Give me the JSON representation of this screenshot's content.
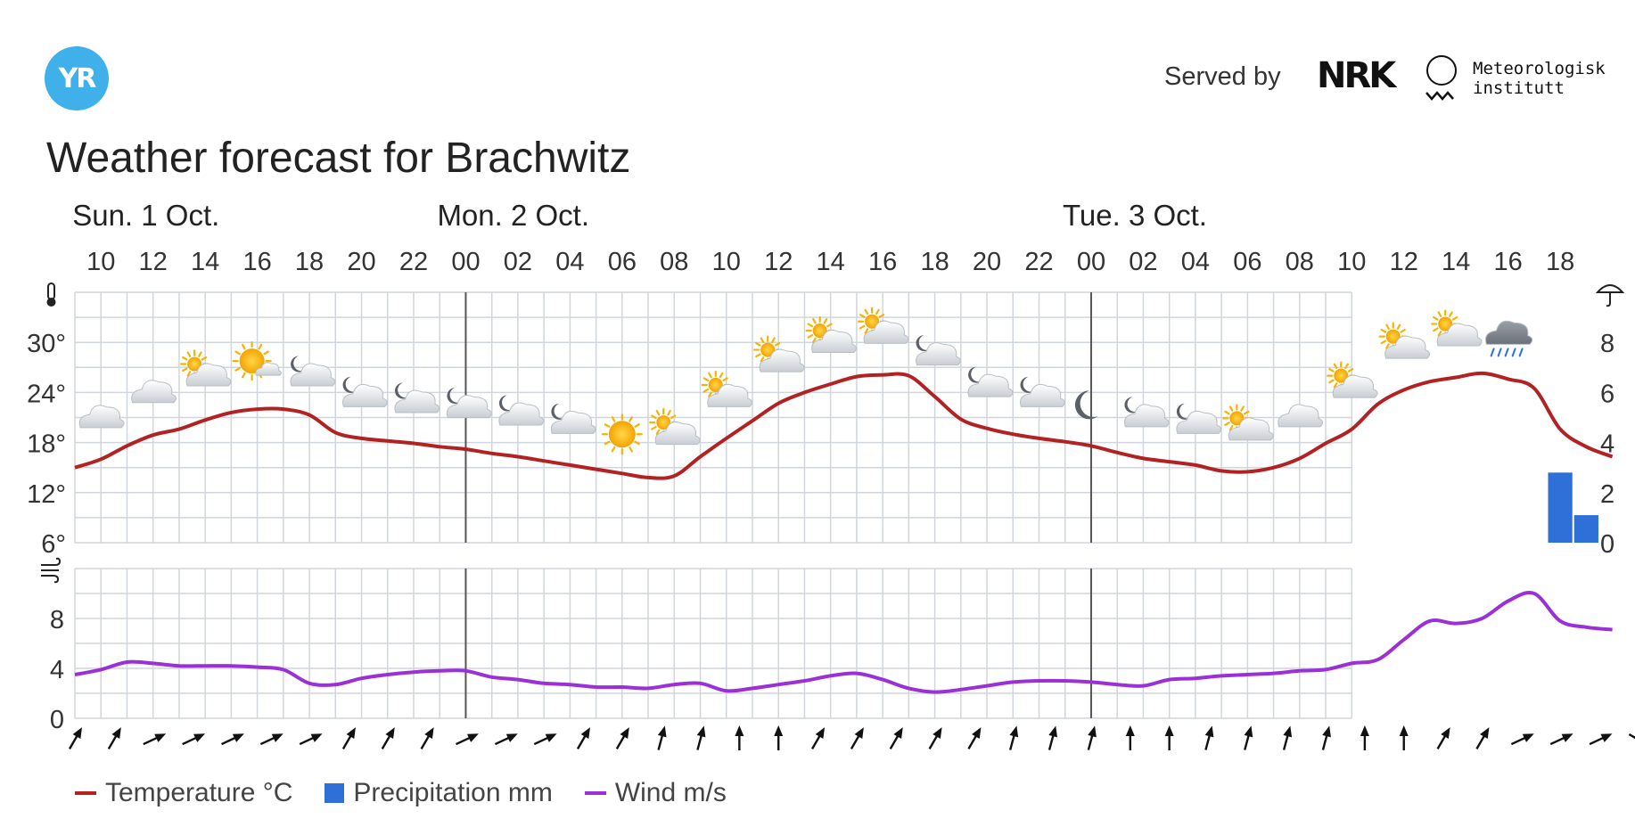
{
  "header": {
    "logo_text": "YR",
    "served_by": "Served by",
    "nrk_logo": "NRK",
    "met_line1": "Meteorologisk",
    "met_line2": "institutt"
  },
  "title": "Weather forecast for Brachwitz",
  "colors": {
    "temperature": "#b22222",
    "precipitation": "#2e6fd8",
    "wind": "#9b30d9",
    "grid": "#d0d6dc",
    "day_divider": "#555555"
  },
  "legend": [
    {
      "label": "Temperature °C",
      "kind": "line",
      "color": "#b22222"
    },
    {
      "label": "Precipitation mm",
      "kind": "box",
      "color": "#2e6fd8"
    },
    {
      "label": "Wind m/s",
      "kind": "line",
      "color": "#9b30d9"
    }
  ],
  "chart_data": {
    "type": "line",
    "x_start": "Sun 1 Oct 09:00",
    "x_step_hours": 1,
    "days": [
      {
        "label": "Sun. 1 Oct.",
        "hour": 10
      },
      {
        "label": "Mon. 2 Oct.",
        "hour": 24
      },
      {
        "label": "Tue. 3 Oct.",
        "hour": 48
      }
    ],
    "hour_ticks": [
      "10",
      "12",
      "14",
      "16",
      "18",
      "20",
      "22",
      "00",
      "02",
      "04",
      "06",
      "08",
      "10",
      "12",
      "14",
      "16",
      "18",
      "20",
      "22",
      "00",
      "02",
      "04",
      "06",
      "08",
      "10",
      "12",
      "14",
      "16",
      "18"
    ],
    "day_dividers": [
      24,
      48
    ],
    "temperature": {
      "name": "Temperature °C",
      "axis_ticks": [
        "6°",
        "12°",
        "18°",
        "24°",
        "30°"
      ],
      "ylim": [
        6,
        36
      ],
      "hours": [
        9,
        10,
        11,
        12,
        13,
        14,
        15,
        16,
        17,
        18,
        19,
        20,
        21,
        22,
        23,
        24,
        25,
        26,
        27,
        28,
        29,
        30,
        31,
        32,
        33,
        34,
        35,
        36,
        37,
        38,
        39,
        40,
        41,
        42,
        43,
        44,
        45,
        46,
        47,
        48,
        49,
        50,
        51,
        52,
        53,
        54,
        55,
        56,
        57,
        58,
        59,
        60,
        61,
        62,
        63,
        64,
        65,
        66,
        67,
        68
      ],
      "values": [
        15,
        16,
        17.6,
        18.9,
        19.6,
        20.7,
        21.6,
        22,
        22,
        21.3,
        19.2,
        18.5,
        18.2,
        17.9,
        17.5,
        17.2,
        16.7,
        16.3,
        15.8,
        15.3,
        14.8,
        14.3,
        13.8,
        14,
        16.3,
        18.5,
        20.6,
        22.7,
        24,
        25,
        25.9,
        26.1,
        26,
        23.5,
        20.8,
        19.7,
        19,
        18.5,
        18.1,
        17.6,
        16.8,
        16.1,
        15.7,
        15.3,
        14.6,
        14.5,
        15,
        16.1,
        17.9,
        19.6,
        22.6,
        24.3,
        25.3,
        25.8,
        26.3,
        25.6,
        24.5,
        19.6,
        17.5,
        16.3
      ]
    },
    "precipitation": {
      "name": "Precipitation mm",
      "axis_ticks": [
        "0",
        "2",
        "4",
        "6",
        "8"
      ],
      "ylim": [
        0,
        10
      ],
      "bars": [
        {
          "hour": 66,
          "value": 2.8
        },
        {
          "hour": 67,
          "value": 1.1
        }
      ]
    },
    "wind": {
      "name": "Wind m/s",
      "axis_ticks": [
        "0",
        "4",
        "8"
      ],
      "ylim": [
        0,
        12
      ],
      "hours": [
        9,
        10,
        11,
        12,
        13,
        14,
        15,
        16,
        17,
        18,
        19,
        20,
        21,
        22,
        23,
        24,
        25,
        26,
        27,
        28,
        29,
        30,
        31,
        32,
        33,
        34,
        35,
        36,
        37,
        38,
        39,
        40,
        41,
        42,
        43,
        44,
        45,
        46,
        47,
        48,
        49,
        50,
        51,
        52,
        53,
        54,
        55,
        56,
        57,
        58,
        59,
        60,
        61,
        62,
        63,
        64,
        65,
        66,
        67,
        68
      ],
      "values": [
        3.5,
        3.9,
        4.5,
        4.4,
        4.2,
        4.2,
        4.2,
        4.1,
        3.9,
        2.8,
        2.7,
        3.2,
        3.5,
        3.7,
        3.8,
        3.8,
        3.3,
        3.1,
        2.8,
        2.7,
        2.5,
        2.5,
        2.4,
        2.7,
        2.8,
        2.2,
        2.4,
        2.7,
        3,
        3.4,
        3.6,
        3.1,
        2.4,
        2.1,
        2.3,
        2.6,
        2.9,
        3,
        3,
        2.9,
        2.7,
        2.6,
        3.1,
        3.2,
        3.4,
        3.5,
        3.6,
        3.8,
        3.9,
        4.4,
        4.7,
        6.3,
        7.8,
        7.6,
        8,
        9.4,
        10,
        7.8,
        7.3,
        7.1
      ],
      "direction_deg": [
        30,
        30,
        65,
        65,
        65,
        65,
        65,
        30,
        30,
        30,
        65,
        65,
        65,
        30,
        30,
        15,
        15,
        0,
        0,
        30,
        30,
        30,
        30,
        30,
        15,
        15,
        15,
        0,
        0,
        15,
        15,
        15,
        15,
        0,
        0,
        30,
        30,
        65,
        65,
        65,
        120
      ]
    },
    "weather_symbols": [
      {
        "hour": 10,
        "icon": "cloud-icon",
        "temp_anchor": 16
      },
      {
        "hour": 12,
        "icon": "cloud-icon",
        "temp_anchor": 19
      },
      {
        "hour": 14,
        "icon": "partly-sunny-icon",
        "temp_anchor": 21
      },
      {
        "hour": 16,
        "icon": "sun-cloud-icon",
        "temp_anchor": 22
      },
      {
        "hour": 18,
        "icon": "partly-cloudy-night-icon",
        "temp_anchor": 21
      },
      {
        "hour": 20,
        "icon": "partly-cloudy-night-icon",
        "temp_anchor": 18.5
      },
      {
        "hour": 22,
        "icon": "partly-cloudy-night-icon",
        "temp_anchor": 17.8
      },
      {
        "hour": 24,
        "icon": "partly-cloudy-night-icon",
        "temp_anchor": 17.2
      },
      {
        "hour": 26,
        "icon": "partly-cloudy-night-icon",
        "temp_anchor": 16.3
      },
      {
        "hour": 28,
        "icon": "partly-cloudy-night-icon",
        "temp_anchor": 15.3
      },
      {
        "hour": 30,
        "icon": "sun-icon",
        "temp_anchor": 14.3
      },
      {
        "hour": 32,
        "icon": "partly-sunny-icon",
        "temp_anchor": 14
      },
      {
        "hour": 34,
        "icon": "partly-sunny-icon",
        "temp_anchor": 18.5
      },
      {
        "hour": 36,
        "icon": "partly-sunny-icon",
        "temp_anchor": 22.7
      },
      {
        "hour": 38,
        "icon": "partly-sunny-icon",
        "temp_anchor": 25
      },
      {
        "hour": 40,
        "icon": "partly-sunny-icon",
        "temp_anchor": 26.1
      },
      {
        "hour": 42,
        "icon": "partly-cloudy-night-icon",
        "temp_anchor": 23.5
      },
      {
        "hour": 44,
        "icon": "partly-cloudy-night-icon",
        "temp_anchor": 19.7
      },
      {
        "hour": 46,
        "icon": "partly-cloudy-night-icon",
        "temp_anchor": 18.5
      },
      {
        "hour": 48,
        "icon": "moon-icon",
        "temp_anchor": 17.6
      },
      {
        "hour": 50,
        "icon": "partly-cloudy-night-icon",
        "temp_anchor": 16.1
      },
      {
        "hour": 52,
        "icon": "partly-cloudy-night-icon",
        "temp_anchor": 15.3
      },
      {
        "hour": 54,
        "icon": "partly-sunny-icon",
        "temp_anchor": 14.5
      },
      {
        "hour": 56,
        "icon": "cloud-icon",
        "temp_anchor": 16.1
      },
      {
        "hour": 58,
        "icon": "partly-sunny-icon",
        "temp_anchor": 19.6
      },
      {
        "hour": 60,
        "icon": "partly-sunny-icon",
        "temp_anchor": 24.3
      },
      {
        "hour": 62,
        "icon": "partly-sunny-icon",
        "temp_anchor": 25.8
      },
      {
        "hour": 64,
        "icon": "rain-icon",
        "temp_anchor": 25.6
      }
    ],
    "grid": true,
    "legend_position": "bottom-left"
  }
}
